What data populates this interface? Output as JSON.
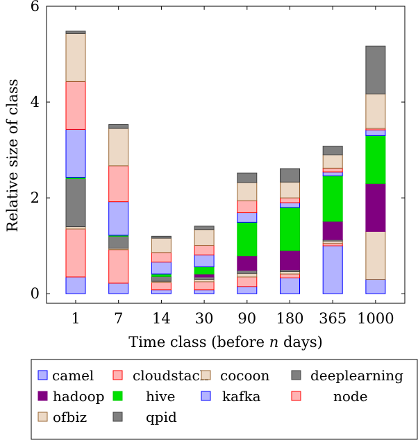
{
  "chart_data": {
    "type": "bar",
    "stacked": true,
    "title": "",
    "xlabel": "Time class (before n days)",
    "xlabel_parts": [
      "Time class (before ",
      "n",
      " days)"
    ],
    "ylabel": "Relative size of class",
    "ylim": [
      -0.2,
      6
    ],
    "yticks": [
      0,
      2,
      4,
      6
    ],
    "grid": false,
    "legend_placement": "below",
    "categories": [
      "1",
      "7",
      "14",
      "30",
      "90",
      "180",
      "365",
      "1000"
    ],
    "series": [
      {
        "name": "camel",
        "fill": "#b3b3ff",
        "stroke": "#0000ff",
        "values": [
          0.35,
          0.22,
          0.08,
          0.08,
          0.15,
          0.33,
          1.0,
          0.3
        ]
      },
      {
        "name": "cloudstack",
        "fill": "#ffb3b3",
        "stroke": "#ff0000",
        "values": [
          1.0,
          0.7,
          0.15,
          0.17,
          0.2,
          0.08,
          0.05,
          0.0
        ]
      },
      {
        "name": "cocoon",
        "fill": "#ecd9c6",
        "stroke": "#996633",
        "values": [
          0.05,
          0.03,
          0.03,
          0.05,
          0.07,
          0.05,
          0.05,
          1.0
        ]
      },
      {
        "name": "deeplearning",
        "fill": "#7f7f7f",
        "stroke": "#404040",
        "values": [
          1.0,
          0.25,
          0.1,
          0.05,
          0.07,
          0.04,
          0.03,
          0.0
        ]
      },
      {
        "name": "hadoop",
        "fill": "#800080",
        "stroke": "#800080",
        "values": [
          0.0,
          0.0,
          0.0,
          0.06,
          0.3,
          0.4,
          0.38,
          1.0
        ]
      },
      {
        "name": "hive",
        "fill": "#00e000",
        "stroke": "#00cc00",
        "values": [
          0.03,
          0.02,
          0.05,
          0.15,
          0.7,
          0.9,
          0.95,
          1.0
        ]
      },
      {
        "name": "kafka",
        "fill": "#b3b3ff",
        "stroke": "#0000ff",
        "values": [
          1.0,
          0.7,
          0.25,
          0.25,
          0.2,
          0.1,
          0.08,
          0.12
        ]
      },
      {
        "name": "node",
        "fill": "#ffb3b3",
        "stroke": "#ff0000",
        "values": [
          1.0,
          0.75,
          0.2,
          0.2,
          0.25,
          0.1,
          0.08,
          0.03
        ]
      },
      {
        "name": "ofbiz",
        "fill": "#ecd9c6",
        "stroke": "#996633",
        "values": [
          1.0,
          0.78,
          0.3,
          0.33,
          0.38,
          0.33,
          0.28,
          0.72
        ]
      },
      {
        "name": "qpid",
        "fill": "#7f7f7f",
        "stroke": "#404040",
        "values": [
          0.05,
          0.08,
          0.04,
          0.07,
          0.2,
          0.28,
          0.18,
          1.0
        ]
      }
    ]
  }
}
